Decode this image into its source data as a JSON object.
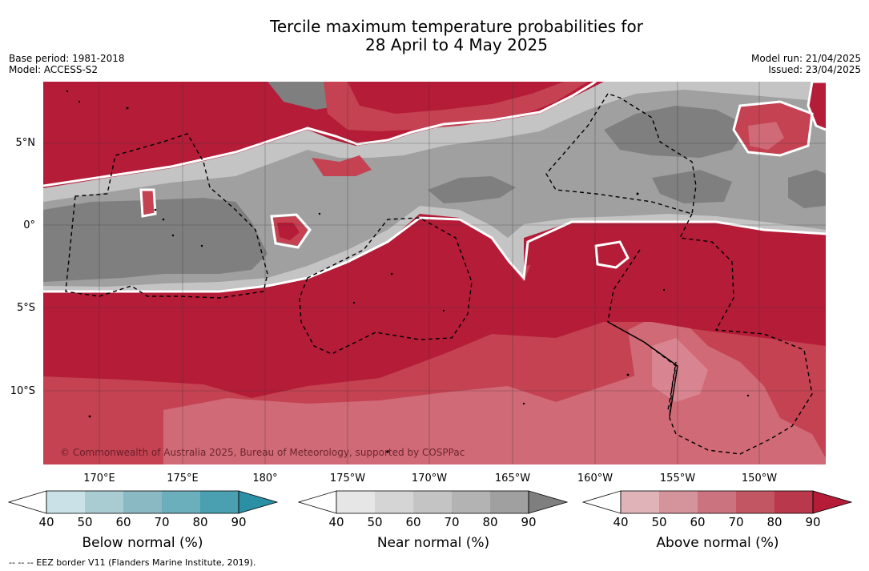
{
  "title": {
    "line1": "Tercile maximum temperature probabilities for",
    "line2": "28 April to 4 May 2025"
  },
  "meta": {
    "base_period": "Base period: 1981-2018",
    "model": "Model: ACCESS-S2",
    "model_run": "Model run: 21/04/2025",
    "issued": "Issued: 23/04/2025"
  },
  "map": {
    "lat_labels": [
      "5°N",
      "0°",
      "5°S",
      "10°S"
    ],
    "lon_labels": [
      "170°E",
      "175°E",
      "180°",
      "175°W",
      "170°W",
      "165°W",
      "160°W",
      "155°W",
      "150°W"
    ],
    "copyright": "© Commonwealth of Australia 2025, Bureau of Meteorology, supported by COSPPac",
    "colors": {
      "above_strong": "#b41c38",
      "above_mid": "#c44252",
      "above_light": "#d06a76",
      "near_dark": "#7f7f7f",
      "near_mid": "#a0a0a0",
      "near_light": "#c4c4c4"
    }
  },
  "colorbars": [
    {
      "title": "Below normal (%)",
      "ticks": [
        "40",
        "50",
        "60",
        "70",
        "80",
        "90"
      ],
      "colors": [
        "#c9e1e7",
        "#a9cbd2",
        "#8ab9c4",
        "#6baebc",
        "#4aa0b0",
        "#2b90a4"
      ]
    },
    {
      "title": "Near normal (%)",
      "ticks": [
        "40",
        "50",
        "60",
        "70",
        "80",
        "90"
      ],
      "colors": [
        "#e6e6e6",
        "#d5d5d5",
        "#c4c4c4",
        "#b3b3b3",
        "#a0a0a0",
        "#7f7f7f"
      ]
    },
    {
      "title": "Above normal (%)",
      "ticks": [
        "40",
        "50",
        "60",
        "70",
        "80",
        "90"
      ],
      "colors": [
        "#e0b3b9",
        "#d5939c",
        "#cb737e",
        "#c25662",
        "#b9384b",
        "#b41c38"
      ]
    }
  ],
  "eez_note": "-- -- -- EEZ border V11 (Flanders Marine Institute, 2019)."
}
